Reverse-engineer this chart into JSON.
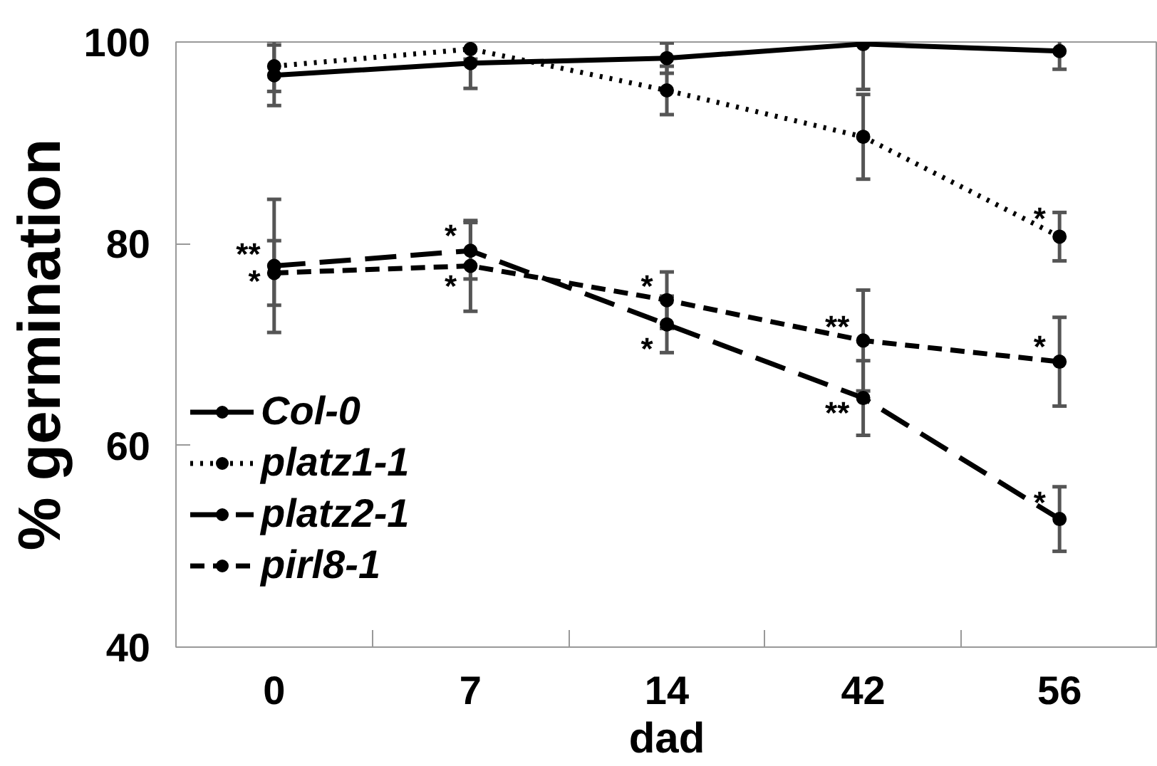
{
  "chart_data": {
    "type": "line",
    "xlabel": "dad",
    "ylabel": "% germination",
    "categories": [
      "0",
      "7",
      "14",
      "42",
      "56"
    ],
    "ylim": [
      40,
      100
    ],
    "yticks": [
      40,
      60,
      80,
      100
    ],
    "grid": false,
    "legend": "left",
    "marker": "circle",
    "series": [
      {
        "name": "Col-0",
        "color": "#000000",
        "line_style": "solid",
        "values": [
          96.7,
          97.9,
          98.4,
          99.8,
          99.1
        ],
        "errors": [
          3,
          2.5,
          1.5,
          4.5,
          1.8
        ]
      },
      {
        "name": "platz1-1",
        "color": "#000000",
        "line_style": "dotted",
        "values": [
          97.6,
          99.3,
          95.2,
          90.6,
          80.7
        ],
        "errors": [
          2.5,
          1,
          2.4,
          4.2,
          2.4
        ]
      },
      {
        "name": "platz2-1",
        "color": "#000000",
        "line_style": "dashed",
        "values": [
          77.8,
          79.3,
          72.0,
          64.7,
          52.7
        ],
        "errors": [
          6.6,
          2.8,
          2.8,
          3.7,
          3.2
        ]
      },
      {
        "name": "pirl8-1",
        "color": "#000000",
        "line_style": "dashed",
        "values": [
          77.1,
          77.8,
          74.4,
          70.4,
          68.3
        ],
        "errors": [
          3.2,
          4.5,
          2.8,
          5,
          4.4
        ]
      }
    ],
    "annotations": [
      {
        "text": "**",
        "x": "0",
        "y": 79
      },
      {
        "text": "*",
        "x": "0",
        "y": 76.3
      },
      {
        "text": "*",
        "x": "7",
        "y": 80.8
      },
      {
        "text": "*",
        "x": "7",
        "y": 75.8
      },
      {
        "text": "*",
        "x": "14",
        "y": 75.8
      },
      {
        "text": "*",
        "x": "14",
        "y": 69.6
      },
      {
        "text": "**",
        "x": "42",
        "y": 71.8
      },
      {
        "text": "**",
        "x": "42",
        "y": 63.2
      },
      {
        "text": "*",
        "x": "56",
        "y": 82.5
      },
      {
        "text": "*",
        "x": "56",
        "y": 69.8
      },
      {
        "text": "*",
        "x": "56",
        "y": 54.3
      }
    ]
  }
}
